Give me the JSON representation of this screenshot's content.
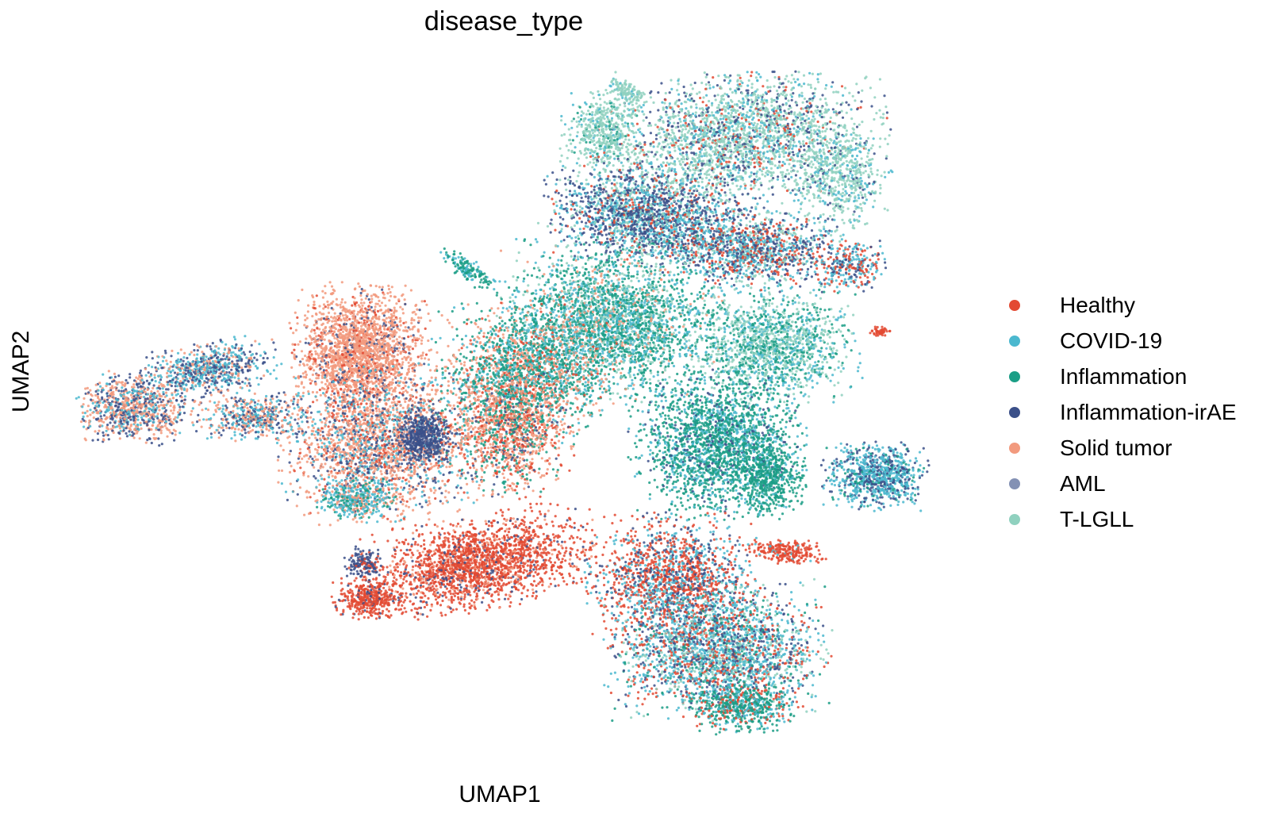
{
  "chart_data": {
    "type": "scatter",
    "title": "disease_type",
    "xlabel": "UMAP1",
    "ylabel": "UMAP2",
    "grid": false,
    "axes_visible": false,
    "legend_position": "right",
    "series": [
      {
        "name": "Healthy",
        "color": "#e34a33"
      },
      {
        "name": "COVID-19",
        "color": "#4bb8cf"
      },
      {
        "name": "Inflammation",
        "color": "#1b9e86"
      },
      {
        "name": "Inflammation-irAE",
        "color": "#3b5089"
      },
      {
        "name": "Solid tumor",
        "color": "#f29a7e"
      },
      {
        "name": "AML",
        "color": "#8391b4"
      },
      {
        "name": "T-LGLL",
        "color": "#90d1bf"
      }
    ]
  }
}
